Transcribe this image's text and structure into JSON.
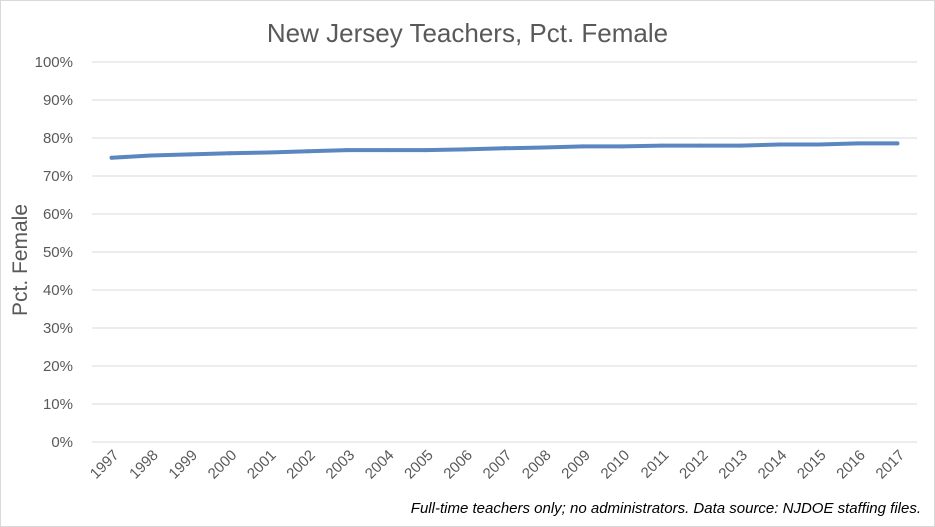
{
  "chart_data": {
    "type": "line",
    "title": "New Jersey Teachers, Pct. Female",
    "xlabel": "",
    "ylabel": "Pct. Female",
    "ylim": [
      0,
      100
    ],
    "y_ticks": [
      "0%",
      "10%",
      "20%",
      "30%",
      "40%",
      "50%",
      "60%",
      "70%",
      "80%",
      "90%",
      "100%"
    ],
    "grid": true,
    "legend": "none",
    "line_color": "#5B87C0",
    "x": [
      "1997",
      "1998",
      "1999",
      "2000",
      "2001",
      "2002",
      "2003",
      "2004",
      "2005",
      "2006",
      "2007",
      "2008",
      "2009",
      "2010",
      "2011",
      "2012",
      "2013",
      "2014",
      "2015",
      "2016",
      "2017"
    ],
    "series": [
      {
        "values": [
          74.8,
          75.4,
          75.7,
          76.0,
          76.2,
          76.5,
          76.8,
          76.8,
          76.8,
          77.0,
          77.3,
          77.5,
          77.8,
          77.8,
          78.0,
          78.0,
          78.0,
          78.3,
          78.3,
          78.6,
          78.6
        ]
      }
    ]
  },
  "footnote": "Full-time teachers only; no administrators. Data source: NJDOE staffing files."
}
